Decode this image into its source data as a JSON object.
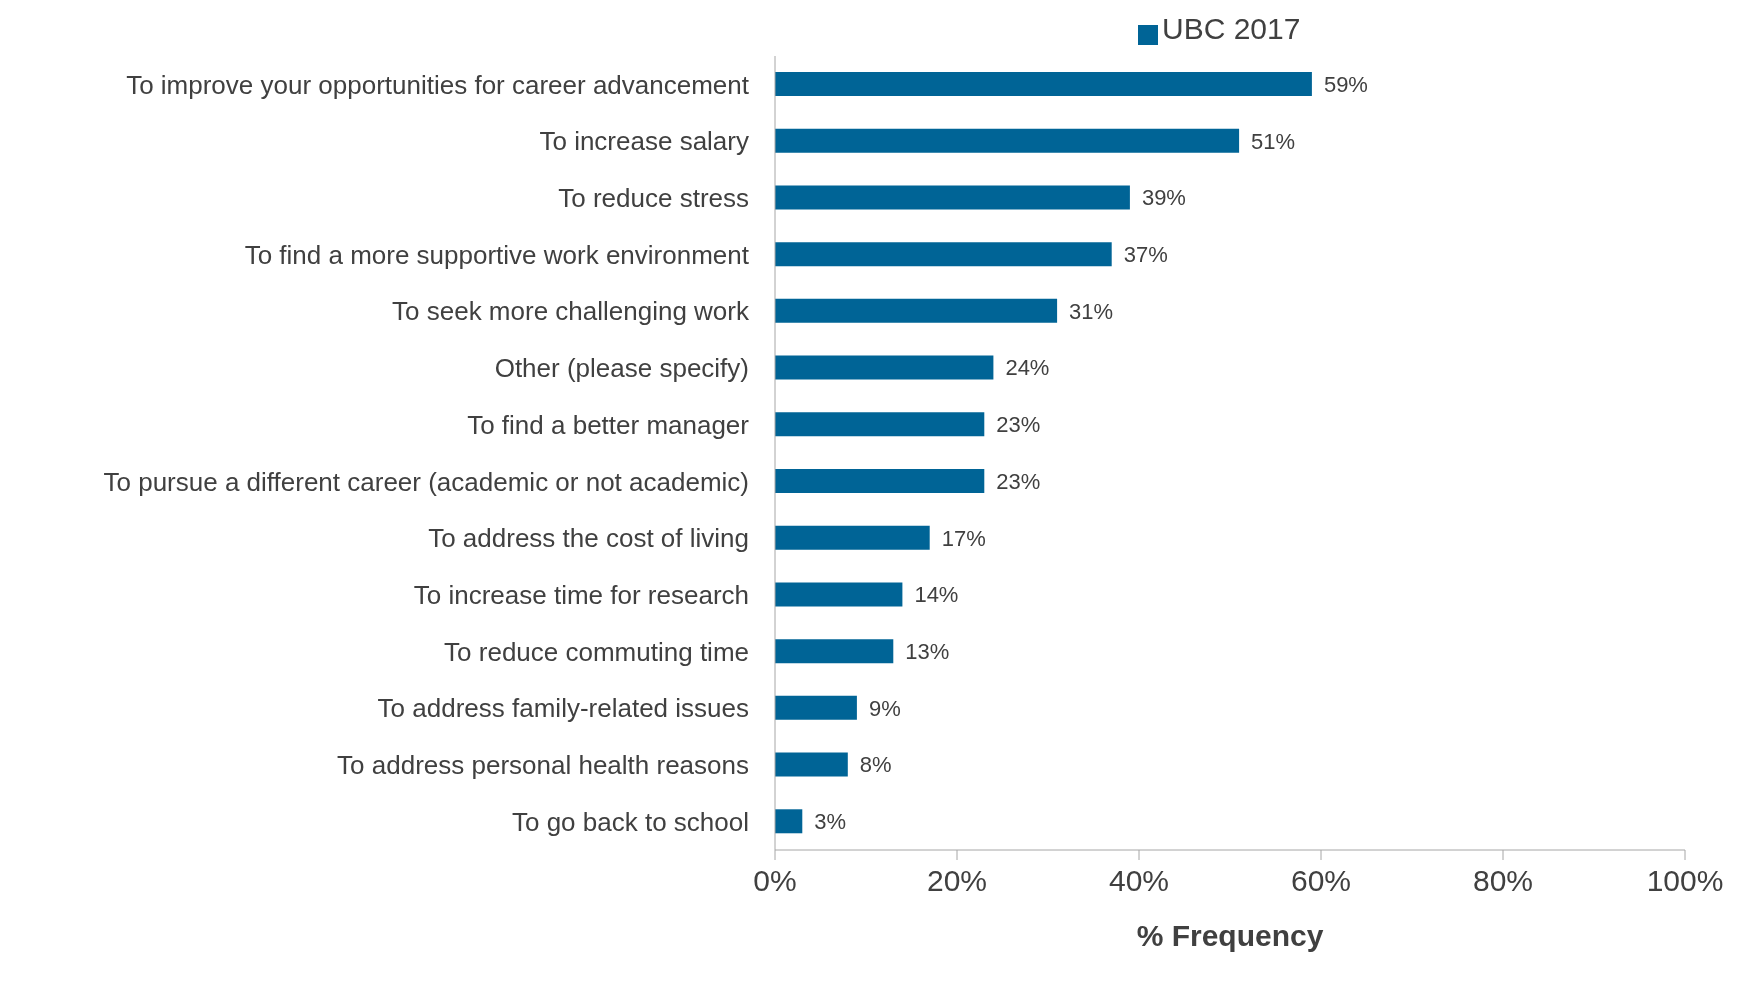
{
  "chart_data": {
    "type": "bar",
    "orientation": "horizontal",
    "xlabel": "% Frequency",
    "categories": [
      "To improve your opportunities for career advancement",
      "To increase salary",
      "To reduce stress",
      "To find a more supportive work environment",
      "To seek more challenging work",
      "Other (please specify)",
      "To find a better manager",
      "To pursue a different career (academic or not academic)",
      "To address the cost of living",
      "To increase time for research",
      "To reduce commuting time",
      "To address family-related issues",
      "To address personal health reasons",
      "To go back to school"
    ],
    "series": [
      {
        "name": "UBC 2017",
        "color": "#006496",
        "values": [
          59,
          51,
          39,
          37,
          31,
          24,
          23,
          23,
          17,
          14,
          13,
          9,
          8,
          3
        ],
        "value_labels": [
          "59%",
          "51%",
          "39%",
          "37%",
          "31%",
          "24%",
          "23%",
          "23%",
          "17%",
          "14%",
          "13%",
          "9%",
          "8%",
          "3%"
        ]
      }
    ],
    "xlim": [
      0,
      100
    ],
    "xticks": [
      {
        "value": 0,
        "label": "0%"
      },
      {
        "value": 20,
        "label": "20%"
      },
      {
        "value": 40,
        "label": "40%"
      },
      {
        "value": 60,
        "label": "60%"
      },
      {
        "value": 80,
        "label": "80%"
      },
      {
        "value": 100,
        "label": "100%"
      }
    ],
    "grid": false,
    "legend": "top"
  }
}
